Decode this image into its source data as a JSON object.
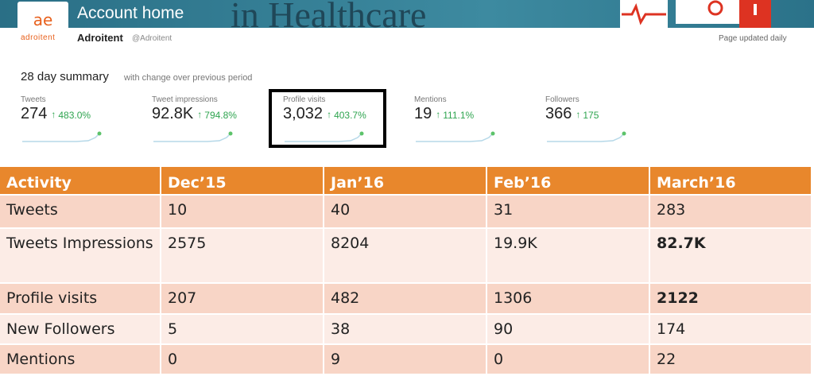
{
  "header": {
    "title": "Account home",
    "banner_text": "in Healthcare",
    "logo_text": "adroitent",
    "account_name": "Adroitent",
    "handle": "@Adroitent",
    "note": "Page updated daily"
  },
  "summary": {
    "title": "28 day summary",
    "subtitle": "with change over previous period",
    "items": [
      {
        "label": "Tweets",
        "value": "274",
        "change": "483.0%"
      },
      {
        "label": "Tweet impressions",
        "value": "92.8K",
        "change": "794.8%"
      },
      {
        "label": "Profile visits",
        "value": "3,032",
        "change": "403.7%"
      },
      {
        "label": "Mentions",
        "value": "19",
        "change": "111.1%"
      },
      {
        "label": "Followers",
        "value": "366",
        "change": "175"
      }
    ]
  },
  "table": {
    "header": [
      "Activity",
      "Dec’15",
      "Jan’16",
      "Feb’16",
      "March’16"
    ],
    "rows": [
      [
        "Tweets",
        "10",
        "40",
        "31",
        "283"
      ],
      [
        "Tweets Impressions",
        "2575",
        "8204",
        "19.9K",
        "82.7K"
      ],
      [
        "Profile visits",
        "207",
        "482",
        "1306",
        "2122"
      ],
      [
        "New Followers",
        "5",
        "38",
        "90",
        "174"
      ],
      [
        "Mentions",
        "0",
        "9",
        "0",
        "22"
      ]
    ]
  }
}
